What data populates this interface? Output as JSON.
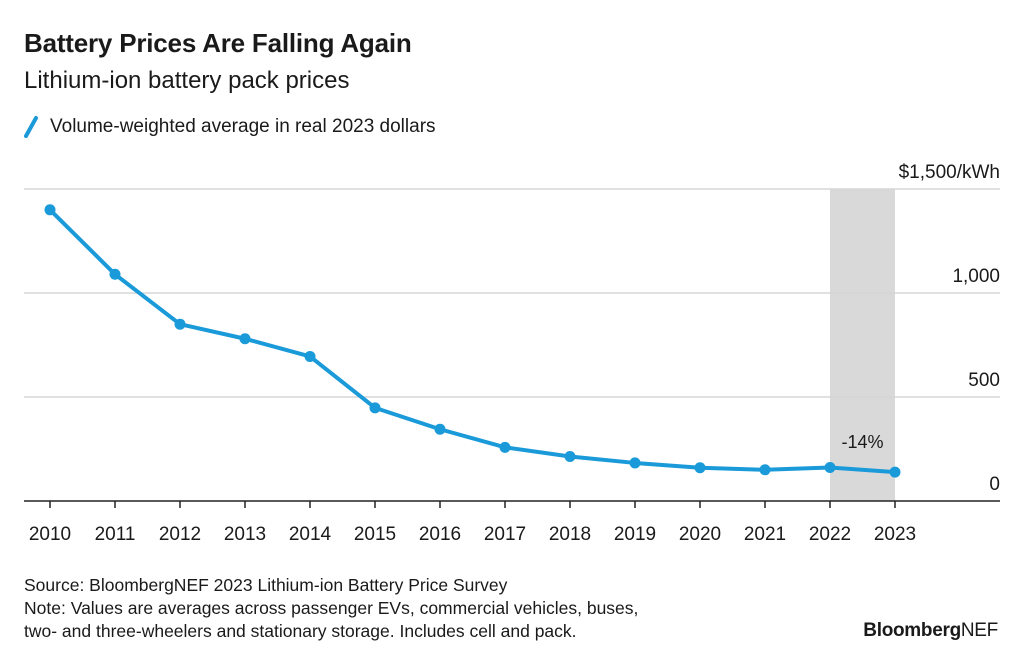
{
  "header": {
    "title": "Battery Prices Are Falling Again",
    "subtitle": "Lithium-ion battery pack prices"
  },
  "legend": {
    "label": "Volume-weighted average in real 2023 dollars"
  },
  "colors": {
    "line": "#1a9ad9",
    "highlight": "#d9d9d9",
    "grid": "#d6d6d6",
    "axis": "#222222"
  },
  "chart_data": {
    "type": "line",
    "x": [
      "2010",
      "2011",
      "2012",
      "2013",
      "2014",
      "2015",
      "2016",
      "2017",
      "2018",
      "2019",
      "2020",
      "2021",
      "2022",
      "2023"
    ],
    "series": [
      {
        "name": "Volume-weighted average in real 2023 dollars",
        "values": [
          1400,
          1090,
          850,
          780,
          695,
          448,
          345,
          258,
          214,
          183,
          160,
          150,
          161,
          139
        ]
      }
    ],
    "ylim": [
      0,
      1500
    ],
    "y_ticks": [
      0,
      500,
      1000,
      1500
    ],
    "y_tick_labels": [
      "0",
      "500",
      "1,000",
      "$1,500/kWh"
    ],
    "grid": true,
    "y_axis_side": "right",
    "highlight_range": [
      "2022",
      "2023"
    ],
    "annotation": {
      "x": "2023",
      "text": "-14%"
    }
  },
  "footer": {
    "source": "Source: BloombergNEF 2023 Lithium-ion Battery Price Survey",
    "note_line1": "Note: Values are averages across passenger EVs, commercial vehicles, buses,",
    "note_line2": "two- and three-wheelers and stationary storage. Includes cell and pack."
  },
  "brand": {
    "bold": "Bloomberg",
    "light": "NEF"
  }
}
